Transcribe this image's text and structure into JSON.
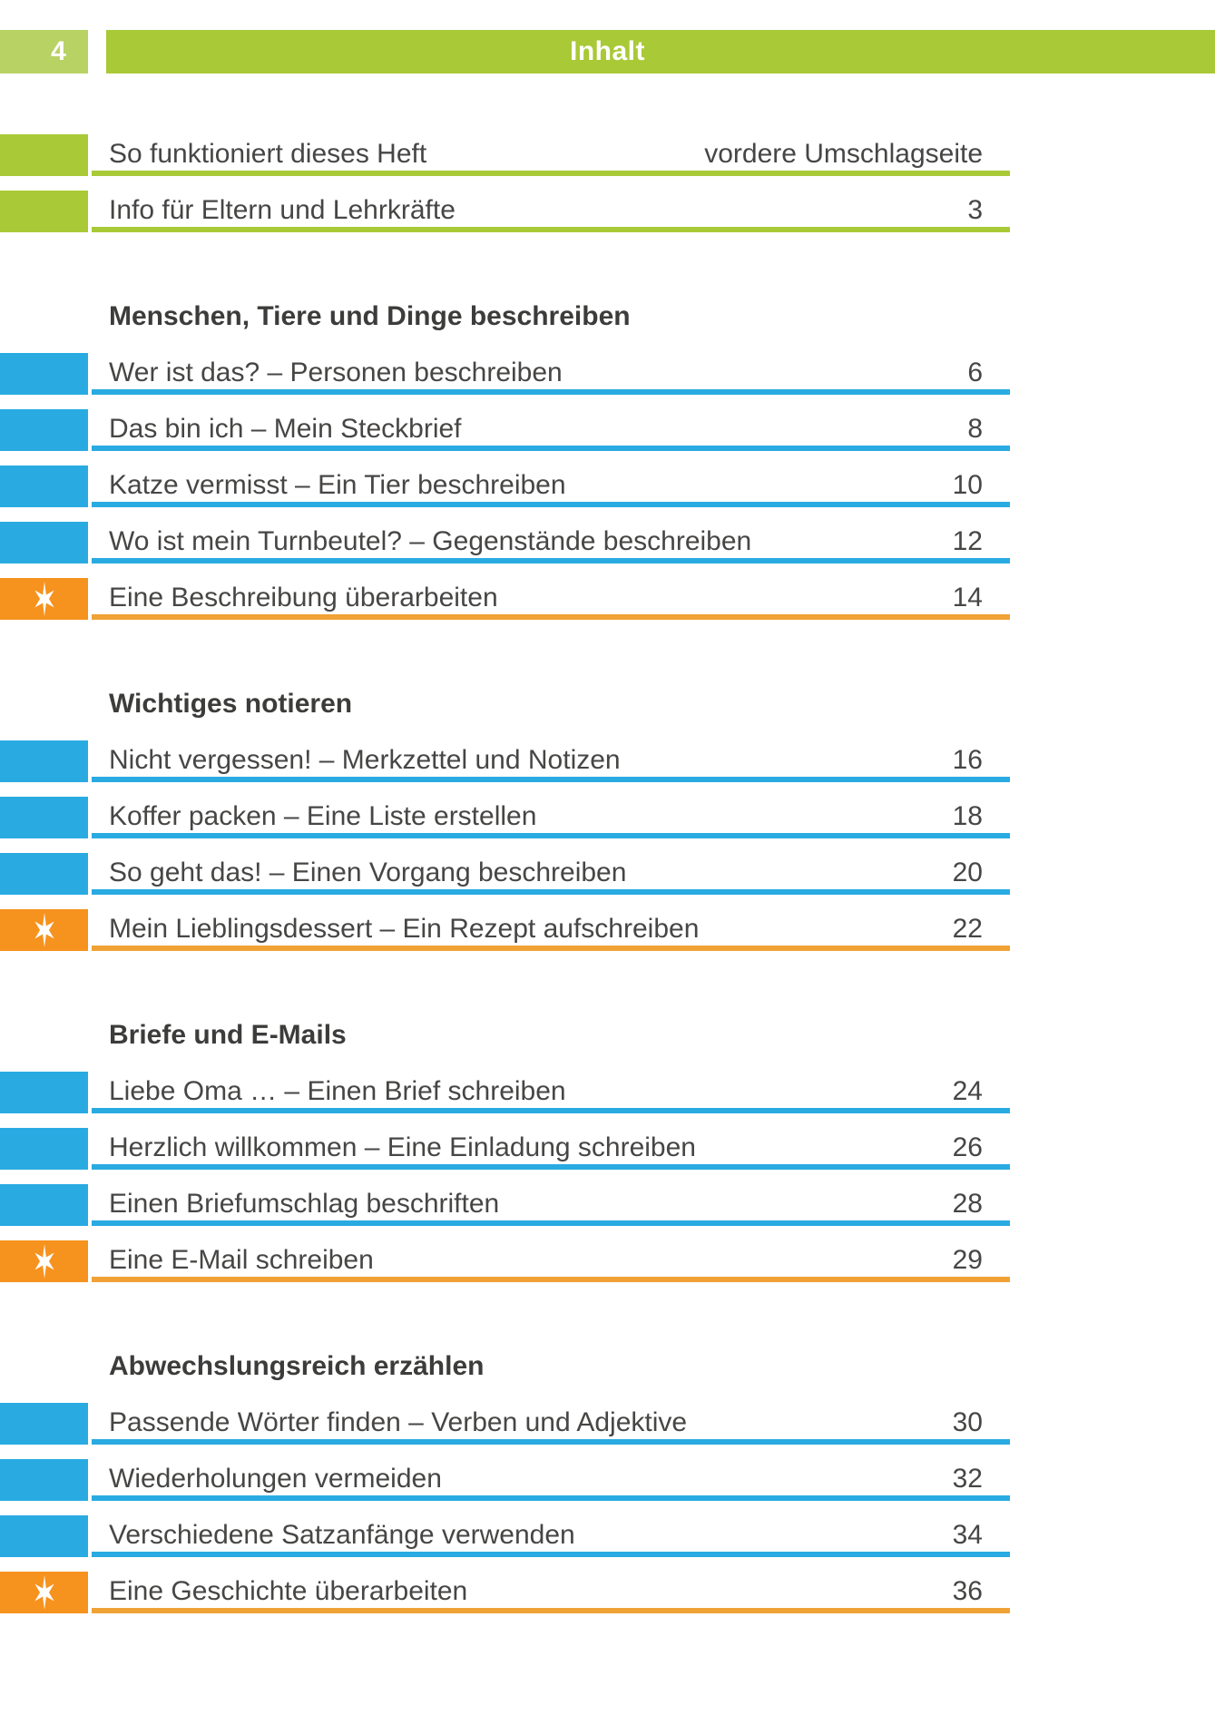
{
  "page": {
    "number": "4",
    "header_title": "Inhalt"
  },
  "colors": {
    "green": "#a9c937",
    "light_green": "#b8d264",
    "blue": "#29abe2",
    "orange": "#f6921e",
    "orange_rule": "#f0a236",
    "text_gray": "#474645"
  },
  "icons": {
    "star_tab": "six-pointed-sparkle-star"
  },
  "front_matter": [
    {
      "title": "So funktioniert dieses Heft",
      "page": "vordere Umschlagseite",
      "type": "green"
    },
    {
      "title": "Info für Eltern und Lehrkräfte",
      "page": "3",
      "type": "green"
    }
  ],
  "sections": [
    {
      "heading": "Menschen, Tiere und Dinge beschreiben",
      "entries": [
        {
          "title": "Wer ist das? – Personen beschreiben",
          "page": "6",
          "type": "blue"
        },
        {
          "title": "Das bin ich – Mein Steckbrief",
          "page": "8",
          "type": "blue"
        },
        {
          "title": "Katze vermisst – Ein Tier beschreiben",
          "page": "10",
          "type": "blue"
        },
        {
          "title": "Wo ist mein Turnbeutel? – Gegenstände beschreiben",
          "page": "12",
          "type": "blue"
        },
        {
          "title": "Eine Beschreibung überarbeiten",
          "page": "14",
          "type": "star"
        }
      ]
    },
    {
      "heading": "Wichtiges notieren",
      "entries": [
        {
          "title": "Nicht vergessen! – Merkzettel und Notizen",
          "page": "16",
          "type": "blue"
        },
        {
          "title": "Koffer packen – Eine Liste erstellen",
          "page": "18",
          "type": "blue"
        },
        {
          "title": "So geht das! – Einen Vorgang beschreiben",
          "page": "20",
          "type": "blue"
        },
        {
          "title": "Mein Lieblingsdessert – Ein Rezept aufschreiben",
          "page": "22",
          "type": "star"
        }
      ]
    },
    {
      "heading": "Briefe und E-Mails",
      "entries": [
        {
          "title": "Liebe Oma … – Einen Brief schreiben",
          "page": "24",
          "type": "blue"
        },
        {
          "title": "Herzlich willkommen – Eine Einladung schreiben",
          "page": "26",
          "type": "blue"
        },
        {
          "title": "Einen Briefumschlag beschriften",
          "page": "28",
          "type": "blue"
        },
        {
          "title": "Eine E-Mail schreiben",
          "page": "29",
          "type": "star"
        }
      ]
    },
    {
      "heading": "Abwechslungsreich erzählen",
      "entries": [
        {
          "title": "Passende Wörter finden – Verben und Adjektive",
          "page": "30",
          "type": "blue"
        },
        {
          "title": "Wiederholungen vermeiden",
          "page": "32",
          "type": "blue"
        },
        {
          "title": "Verschiedene Satzanfänge verwenden",
          "page": "34",
          "type": "blue"
        },
        {
          "title": "Eine Geschichte überarbeiten",
          "page": "36",
          "type": "star"
        }
      ]
    }
  ]
}
